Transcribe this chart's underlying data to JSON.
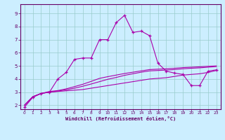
{
  "xlabel": "Windchill (Refroidissement éolien,°C)",
  "xlim": [
    -0.5,
    23.5
  ],
  "ylim": [
    1.7,
    9.7
  ],
  "xticks": [
    0,
    1,
    2,
    3,
    4,
    5,
    6,
    7,
    8,
    9,
    10,
    11,
    12,
    13,
    14,
    15,
    16,
    17,
    18,
    19,
    20,
    21,
    22,
    23
  ],
  "yticks": [
    2,
    3,
    4,
    5,
    6,
    7,
    8,
    9
  ],
  "bg_color": "#cceeff",
  "line_color": "#aa00aa",
  "grid_color": "#99cccc",
  "lines": [
    {
      "x": [
        0,
        1,
        2,
        3,
        4,
        5,
        6,
        7,
        8,
        9,
        10,
        11,
        12,
        13,
        14,
        15,
        16,
        17,
        18,
        19,
        20,
        21,
        22,
        23
      ],
      "y": [
        1.85,
        2.6,
        2.9,
        3.0,
        4.0,
        4.5,
        5.5,
        5.6,
        5.6,
        7.0,
        7.0,
        8.3,
        8.85,
        7.55,
        7.65,
        7.3,
        5.2,
        4.6,
        4.45,
        4.35,
        3.5,
        3.5,
        4.6,
        4.7
      ],
      "marker": true
    },
    {
      "x": [
        0,
        1,
        2,
        3,
        4,
        5,
        6,
        7,
        8,
        9,
        10,
        11,
        12,
        13,
        14,
        15,
        16,
        17,
        18,
        19,
        20,
        21,
        22,
        23
      ],
      "y": [
        2.0,
        2.65,
        2.9,
        3.0,
        3.05,
        3.1,
        3.15,
        3.2,
        3.3,
        3.4,
        3.5,
        3.6,
        3.7,
        3.8,
        3.9,
        4.0,
        4.05,
        4.1,
        4.2,
        4.3,
        4.35,
        4.4,
        4.5,
        4.65
      ],
      "marker": false
    },
    {
      "x": [
        0,
        1,
        2,
        3,
        4,
        5,
        6,
        7,
        8,
        9,
        10,
        11,
        12,
        13,
        14,
        15,
        16,
        17,
        18,
        19,
        20,
        21,
        22,
        23
      ],
      "y": [
        2.0,
        2.65,
        2.9,
        3.0,
        3.08,
        3.18,
        3.3,
        3.45,
        3.62,
        3.8,
        3.98,
        4.12,
        4.28,
        4.4,
        4.52,
        4.62,
        4.65,
        4.68,
        4.72,
        4.78,
        4.82,
        4.85,
        4.9,
        4.95
      ],
      "marker": false
    },
    {
      "x": [
        0,
        1,
        2,
        3,
        4,
        5,
        6,
        7,
        8,
        9,
        10,
        11,
        12,
        13,
        14,
        15,
        16,
        17,
        18,
        19,
        20,
        21,
        22,
        23
      ],
      "y": [
        2.0,
        2.65,
        2.9,
        3.05,
        3.12,
        3.25,
        3.42,
        3.6,
        3.82,
        4.05,
        4.18,
        4.3,
        4.42,
        4.52,
        4.62,
        4.72,
        4.75,
        4.78,
        4.82,
        4.87,
        4.9,
        4.93,
        4.97,
        5.0
      ],
      "marker": false
    }
  ]
}
